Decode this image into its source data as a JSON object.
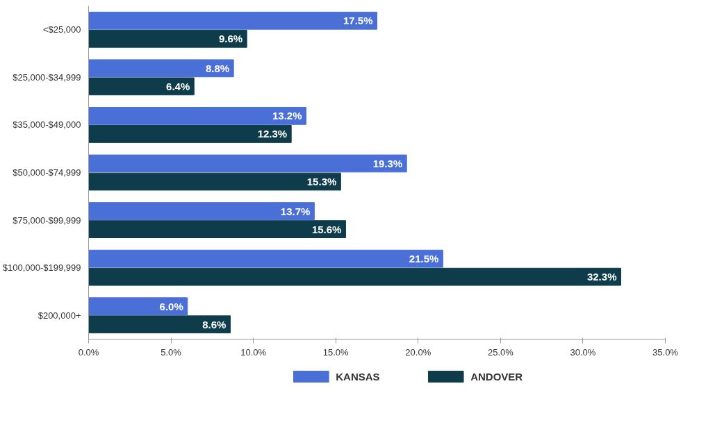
{
  "chart_data": {
    "type": "bar",
    "orientation": "horizontal",
    "categories": [
      "<$25,000",
      "$25,000-$34,999",
      "$35,000-$49,000",
      "$50,000-$74,999",
      "$75,000-$99,999",
      "$100,000-$199,999",
      "$200,000+"
    ],
    "series": [
      {
        "name": "KANSAS",
        "color": "#4a6fd6",
        "values": [
          17.5,
          8.8,
          13.2,
          19.3,
          13.7,
          21.5,
          6.0
        ],
        "value_labels": [
          "17.5%",
          "8.8%",
          "13.2%",
          "19.3%",
          "13.7%",
          "21.5%",
          "6.0%"
        ]
      },
      {
        "name": "ANDOVER",
        "color": "#0e3c4a",
        "values": [
          9.6,
          6.4,
          12.3,
          15.3,
          15.6,
          32.3,
          8.6
        ],
        "value_labels": [
          "9.6%",
          "6.4%",
          "12.3%",
          "15.3%",
          "15.6%",
          "32.3%",
          "8.6%"
        ]
      }
    ],
    "xlim": [
      0,
      35
    ],
    "xticks": [
      {
        "value": 0,
        "label": "0.0%"
      },
      {
        "value": 5,
        "label": "5.0%"
      },
      {
        "value": 10,
        "label": "10.0%"
      },
      {
        "value": 15,
        "label": "15.0%"
      },
      {
        "value": 20,
        "label": "20.0%"
      },
      {
        "value": 25,
        "label": "25.0%"
      },
      {
        "value": 30,
        "label": "30.0%"
      },
      {
        "value": 35,
        "label": "35.0%"
      }
    ],
    "grid": false,
    "legend": "bottom"
  }
}
